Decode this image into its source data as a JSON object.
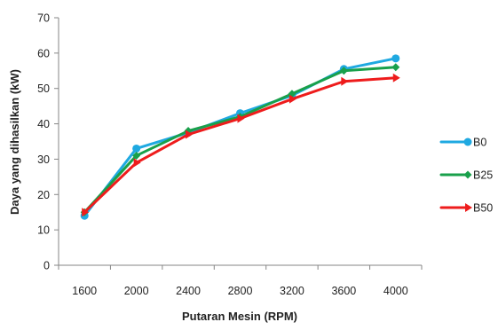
{
  "chart_data": {
    "type": "line",
    "title": "",
    "xlabel": "Putaran Mesin (RPM)",
    "ylabel": "Daya yang dihasilkan (kW)",
    "categories": [
      "1600",
      "2000",
      "2400",
      "2800",
      "3200",
      "3600",
      "4000"
    ],
    "ylim": [
      0,
      70
    ],
    "yticks": [
      "0",
      "10",
      "20",
      "30",
      "40",
      "50",
      "60",
      "70"
    ],
    "grid": false,
    "legend_position": "right",
    "series": [
      {
        "name": "B0",
        "color": "#1FA9E1",
        "marker": "circle",
        "values": [
          14,
          33,
          37.5,
          43,
          48,
          55.5,
          58.5
        ]
      },
      {
        "name": "B25",
        "color": "#19A04B",
        "marker": "diamond",
        "values": [
          15,
          31,
          38,
          42,
          48.5,
          55,
          56
        ]
      },
      {
        "name": "B50",
        "color": "#EE1C1C",
        "marker": "arrow",
        "values": [
          15,
          29,
          37,
          41.5,
          47,
          52,
          53
        ]
      }
    ]
  }
}
